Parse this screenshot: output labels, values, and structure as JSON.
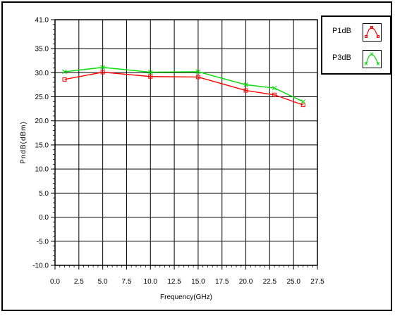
{
  "chart_data": {
    "type": "line",
    "title": "",
    "xlabel": "Frequency(GHz)",
    "ylabel": "PndB(dBm)",
    "xlim": [
      0,
      27.5
    ],
    "ylim": [
      -10,
      41
    ],
    "grid": true,
    "x_ticks": [
      0,
      2.5,
      5,
      7.5,
      10,
      12.5,
      15,
      17.5,
      20,
      22.5,
      25,
      27.5
    ],
    "x_tick_labels": [
      "0.0",
      "2.5",
      "5.0",
      "7.5",
      "10.0",
      "12.5",
      "15.0",
      "17.5",
      "20.0",
      "22.5",
      "25.0",
      "27.5"
    ],
    "y_ticks": [
      -10,
      -5,
      0,
      5,
      10,
      15,
      20,
      25,
      30,
      35,
      41
    ],
    "y_tick_labels": [
      "-10.0",
      "-5.0",
      "0.0",
      "5.0",
      "10.0",
      "15.0",
      "20.0",
      "25.0",
      "30.0",
      "35.0",
      "41.0"
    ],
    "legend_position": "top-right",
    "series": [
      {
        "name": "P1dB",
        "color": "#ff0000",
        "marker": "square",
        "x": [
          1,
          5,
          10,
          15,
          20,
          23,
          26
        ],
        "y": [
          28.6,
          30.1,
          29.2,
          29.1,
          26.3,
          25.4,
          23.3
        ]
      },
      {
        "name": "P3dB",
        "color": "#00dd00",
        "marker": "cross",
        "x": [
          1,
          5,
          10,
          15,
          20,
          23,
          26
        ],
        "y": [
          30.2,
          31.1,
          30.1,
          30.2,
          27.5,
          26.8,
          24.0
        ]
      }
    ]
  }
}
